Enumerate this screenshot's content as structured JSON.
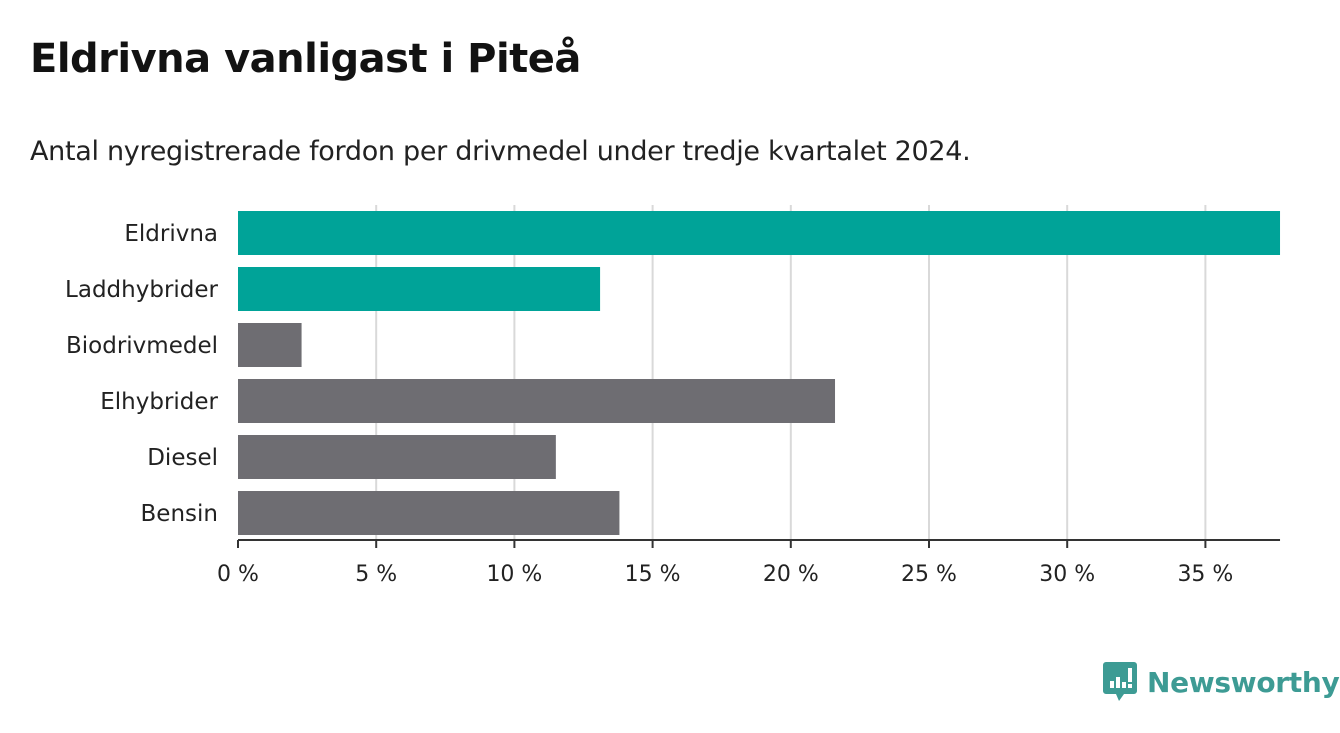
{
  "title": "Eldrivna vanligast i Piteå",
  "subtitle": "Antal nyregistrerade fordon per drivmedel under tredje kvartalet 2024.",
  "brand": {
    "name": "Newsworthy",
    "color": "#3d9b94",
    "icon": "bar-chart-speech-bubble-icon"
  },
  "chart_data": {
    "type": "bar",
    "orientation": "horizontal",
    "title": "Eldrivna vanligast i Piteå",
    "xlabel": "",
    "ylabel": "",
    "categories": [
      "Eldrivna",
      "Laddhybrider",
      "Biodrivmedel",
      "Elhybrider",
      "Diesel",
      "Bensin"
    ],
    "values": [
      37.7,
      13.1,
      2.3,
      21.6,
      11.5,
      13.8
    ],
    "colors": [
      "#00a398",
      "#00a398",
      "#6e6d72",
      "#6e6d72",
      "#6e6d72",
      "#6e6d72"
    ],
    "xlim": [
      0,
      37.7
    ],
    "ticks": [
      0,
      5,
      10,
      15,
      20,
      25,
      30,
      35
    ],
    "tick_labels": [
      "0 %",
      "5 %",
      "10 %",
      "15 %",
      "20 %",
      "25 %",
      "30 %",
      "35 %"
    ],
    "grid": true
  }
}
